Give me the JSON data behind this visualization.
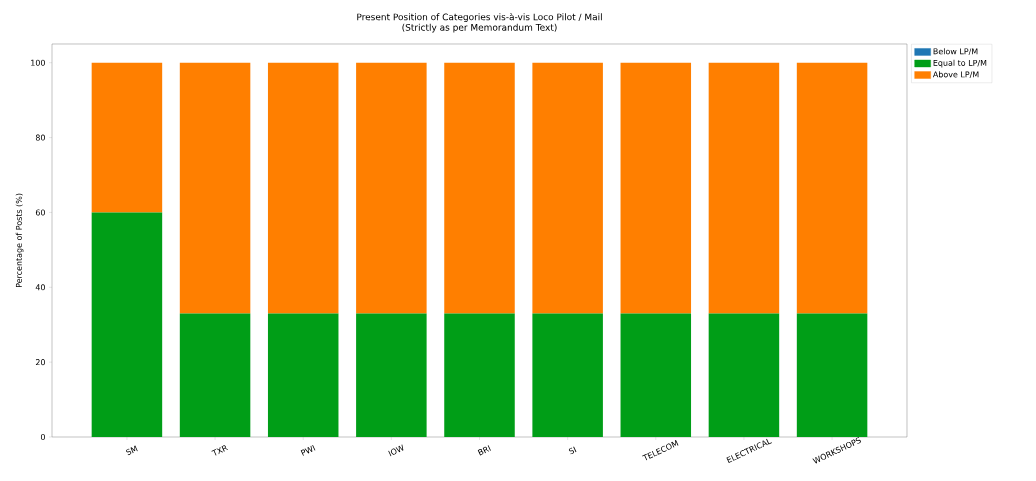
{
  "chart_data": {
    "type": "bar",
    "stacked": true,
    "title": "Present Position of Categories vis-à-vis Loco Pilot / Mail",
    "subtitle": "(Strictly as per Memorandum Text)",
    "ylabel": "Percentage of Posts (%)",
    "categories": [
      "SM",
      "TXR",
      "PWI",
      "IOW",
      "BRI",
      "SI",
      "TELECOM",
      "ELECTRICAL",
      "WORKSHOPS"
    ],
    "series": [
      {
        "name": "Below LP/M",
        "color": "#1f77b4",
        "values": [
          0,
          0,
          0,
          0,
          0,
          0,
          0,
          0,
          0
        ]
      },
      {
        "name": "Equal to LP/M",
        "color": "#009e17",
        "values": [
          60,
          33,
          33,
          33,
          33,
          33,
          33,
          33,
          33
        ]
      },
      {
        "name": "Above LP/M",
        "color": "#ff7f00",
        "values": [
          40,
          67,
          67,
          67,
          67,
          67,
          67,
          67,
          67
        ]
      }
    ],
    "ylim": [
      0,
      105
    ],
    "yticks": [
      0,
      20,
      40,
      60,
      80,
      100
    ],
    "legend": "top right"
  }
}
